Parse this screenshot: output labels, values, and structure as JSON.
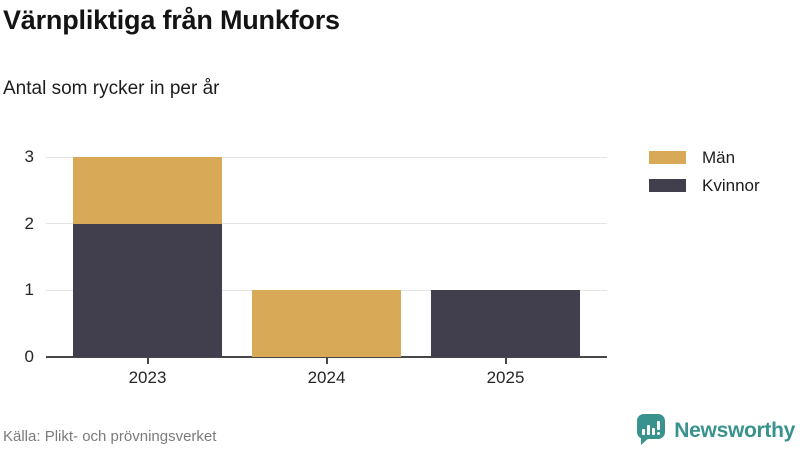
{
  "header": {
    "title": "Värnpliktiga från Munkfors",
    "subtitle": "Antal som rycker in per år"
  },
  "chart_data": {
    "type": "bar",
    "stacked": true,
    "title": "Värnpliktiga från Munkfors",
    "subtitle": "Antal som rycker in per år",
    "categories": [
      "2023",
      "2024",
      "2025"
    ],
    "series": [
      {
        "name": "Män",
        "color": "#d8aa58",
        "values": [
          1,
          1,
          0
        ]
      },
      {
        "name": "Kvinnor",
        "color": "#413f4e",
        "values": [
          2,
          0,
          1
        ]
      }
    ],
    "stack_bottom_to_top": [
      "Kvinnor",
      "Män"
    ],
    "xlabel": "",
    "ylabel": "",
    "ylim": [
      0,
      3
    ],
    "yticks": [
      0,
      1,
      2,
      3
    ],
    "grid": true,
    "legend_position": "right"
  },
  "legend": {
    "items": [
      {
        "label": "Män",
        "color": "#d8aa58"
      },
      {
        "label": "Kvinnor",
        "color": "#413f4e"
      }
    ]
  },
  "footer": {
    "source": "Källa: Plikt- och prövningsverket",
    "brand": "Newsworthy",
    "brand_color": "#39928e"
  },
  "colors": {
    "men": "#d8aa58",
    "women": "#413f4e",
    "gridline": "#e4e4e4",
    "axis": "#474747",
    "brand_teal": "#39928e"
  }
}
